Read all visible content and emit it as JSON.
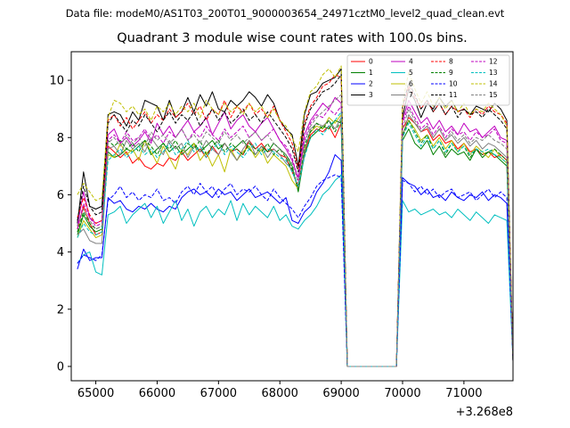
{
  "suptitle": "Data file: modeM0/AS1T03_200T01_9000003654_24971cztM0_level2_quad_clean.evt",
  "chart_data": {
    "type": "line",
    "title": "Quadrant 3 module wise count rates with 100.0s bins.",
    "xlabel": "",
    "ylabel": "",
    "x_offset_label": "+3.268e8",
    "xlim": [
      64600,
      71800
    ],
    "ylim": [
      -0.5,
      11
    ],
    "xticks": [
      65000,
      66000,
      67000,
      68000,
      69000,
      70000,
      71000
    ],
    "yticks": [
      0,
      2,
      4,
      6,
      8,
      10
    ],
    "grid": false,
    "legend": {
      "placement": "top-right",
      "columns": 4
    },
    "x_start": 64700,
    "x_step": 100,
    "series": [
      {
        "name": "0",
        "color": "#ff0000",
        "dash": "solid",
        "values": [
          4.8,
          5.6,
          5.0,
          4.6,
          4.7,
          7.7,
          7.5,
          7.3,
          7.5,
          7.1,
          7.3,
          7.0,
          6.9,
          7.1,
          7.0,
          7.3,
          7.2,
          7.5,
          7.2,
          7.4,
          7.6,
          7.3,
          7.7,
          7.4,
          7.8,
          7.5,
          7.6,
          7.4,
          7.9,
          7.6,
          7.8,
          7.5,
          7.6,
          7.4,
          7.3,
          6.8,
          6.3,
          7.5,
          8.1,
          8.3,
          8.2,
          8.4,
          8.0,
          8.5,
          0.0,
          0.0,
          0.0,
          0.0,
          0.0,
          0.0,
          0.0,
          0.0,
          0.0,
          8.3,
          8.7,
          8.5,
          8.2,
          8.3,
          7.9,
          8.1,
          7.8,
          7.9,
          7.6,
          7.8,
          7.5,
          7.6,
          7.4,
          7.5,
          7.3,
          7.4,
          7.2,
          0.2
        ]
      },
      {
        "name": "1",
        "color": "#008000",
        "dash": "solid",
        "values": [
          4.6,
          5.3,
          4.9,
          4.7,
          4.8,
          7.5,
          7.3,
          7.4,
          7.6,
          7.5,
          7.7,
          7.9,
          7.4,
          7.6,
          7.8,
          7.5,
          7.7,
          7.4,
          7.6,
          7.8,
          7.5,
          7.7,
          7.9,
          7.6,
          7.8,
          7.5,
          7.7,
          7.9,
          7.6,
          7.4,
          7.7,
          7.5,
          7.8,
          7.6,
          7.4,
          7.0,
          6.1,
          7.4,
          8.0,
          8.2,
          8.4,
          8.3,
          8.6,
          8.5,
          0.0,
          0.0,
          0.0,
          0.0,
          0.0,
          0.0,
          0.0,
          0.0,
          0.0,
          7.9,
          8.3,
          7.8,
          7.6,
          7.9,
          7.4,
          7.7,
          7.3,
          7.6,
          7.4,
          7.5,
          7.2,
          7.6,
          7.3,
          7.5,
          7.4,
          7.2,
          7.0,
          0.2
        ]
      },
      {
        "name": "2",
        "color": "#0000ff",
        "dash": "solid",
        "values": [
          3.4,
          4.1,
          3.7,
          3.8,
          3.8,
          5.9,
          5.7,
          5.8,
          5.5,
          5.4,
          5.6,
          5.5,
          5.7,
          5.5,
          5.4,
          5.6,
          5.5,
          5.9,
          6.1,
          6.2,
          6.0,
          6.1,
          5.9,
          6.2,
          6.0,
          6.1,
          5.8,
          6.0,
          6.2,
          5.9,
          6.0,
          6.1,
          5.9,
          5.7,
          5.9,
          5.1,
          5.0,
          5.4,
          5.6,
          6.1,
          6.4,
          6.8,
          7.4,
          7.2,
          0.0,
          0.0,
          0.0,
          0.0,
          0.0,
          0.0,
          0.0,
          0.0,
          0.0,
          6.6,
          6.4,
          6.3,
          6.0,
          6.2,
          5.9,
          6.0,
          5.8,
          6.1,
          5.9,
          5.8,
          6.0,
          5.9,
          6.1,
          5.8,
          6.0,
          5.9,
          5.7,
          0.2
        ]
      },
      {
        "name": "3",
        "color": "#000000",
        "dash": "solid",
        "values": [
          5.0,
          6.8,
          5.6,
          5.5,
          5.6,
          8.8,
          8.9,
          8.8,
          8.4,
          8.9,
          8.6,
          9.3,
          9.2,
          9.1,
          8.6,
          9.3,
          8.7,
          8.9,
          9.4,
          8.9,
          9.5,
          9.1,
          9.6,
          9.0,
          8.9,
          9.3,
          9.1,
          9.3,
          9.6,
          9.4,
          9.1,
          9.5,
          9.2,
          8.6,
          8.3,
          8.1,
          7.0,
          8.8,
          9.5,
          9.6,
          9.9,
          10.0,
          10.1,
          10.4,
          0.0,
          0.0,
          0.0,
          0.0,
          0.0,
          0.0,
          0.0,
          0.0,
          0.0,
          8.7,
          9.7,
          9.3,
          8.7,
          9.2,
          9.0,
          9.4,
          9.1,
          9.3,
          8.9,
          9.0,
          8.8,
          9.1,
          9.0,
          8.9,
          9.2,
          9.0,
          8.6,
          0.2
        ]
      },
      {
        "name": "4",
        "color": "#bf00bf",
        "dash": "solid",
        "values": [
          4.9,
          6.1,
          5.2,
          5.0,
          5.1,
          8.1,
          8.3,
          7.8,
          8.0,
          7.7,
          7.9,
          8.2,
          7.8,
          8.5,
          8.1,
          8.4,
          8.0,
          8.3,
          8.6,
          8.2,
          8.4,
          8.7,
          8.1,
          8.5,
          8.9,
          8.3,
          8.6,
          8.8,
          8.4,
          8.2,
          8.5,
          8.7,
          8.3,
          7.9,
          7.6,
          7.2,
          6.6,
          8.1,
          8.6,
          8.9,
          9.2,
          9.0,
          9.4,
          9.2,
          0.0,
          0.0,
          0.0,
          0.0,
          0.0,
          0.0,
          0.0,
          0.0,
          0.0,
          8.6,
          9.3,
          8.9,
          8.5,
          8.7,
          8.3,
          8.6,
          8.2,
          8.4,
          8.1,
          8.5,
          8.2,
          8.3,
          8.0,
          8.2,
          8.4,
          8.0,
          7.9,
          0.2
        ]
      },
      {
        "name": "5",
        "color": "#00bfbf",
        "dash": "solid",
        "values": [
          3.6,
          3.9,
          4.0,
          3.3,
          3.2,
          5.3,
          5.4,
          5.6,
          5.0,
          5.3,
          5.5,
          5.7,
          5.2,
          5.6,
          5.0,
          5.4,
          5.8,
          5.1,
          5.5,
          4.9,
          5.4,
          5.6,
          5.2,
          5.5,
          5.3,
          5.8,
          5.1,
          5.7,
          5.3,
          5.6,
          5.4,
          5.2,
          5.6,
          5.1,
          5.3,
          4.9,
          4.8,
          5.1,
          5.3,
          5.6,
          6.0,
          6.2,
          6.5,
          6.7,
          0.0,
          0.0,
          0.0,
          0.0,
          0.0,
          0.0,
          0.0,
          0.0,
          0.0,
          5.8,
          5.4,
          5.5,
          5.3,
          5.4,
          5.5,
          5.3,
          5.4,
          5.2,
          5.5,
          5.3,
          5.1,
          5.4,
          5.2,
          5.0,
          5.3,
          5.2,
          5.1,
          0.2
        ]
      },
      {
        "name": "6",
        "color": "#bfbf00",
        "dash": "solid",
        "values": [
          4.5,
          5.1,
          4.8,
          4.5,
          4.6,
          7.4,
          7.3,
          7.8,
          7.4,
          7.6,
          7.2,
          7.9,
          7.5,
          7.1,
          7.7,
          7.3,
          6.9,
          7.6,
          7.4,
          7.8,
          7.2,
          7.5,
          7.0,
          7.4,
          6.8,
          7.6,
          7.2,
          7.5,
          7.7,
          7.3,
          7.6,
          7.1,
          7.4,
          7.2,
          7.0,
          6.5,
          6.2,
          7.6,
          8.2,
          8.4,
          8.3,
          8.7,
          8.5,
          8.8,
          0.0,
          0.0,
          0.0,
          0.0,
          0.0,
          0.0,
          0.0,
          0.0,
          0.0,
          8.1,
          8.6,
          8.3,
          7.9,
          8.1,
          7.7,
          8.0,
          7.6,
          7.9,
          7.5,
          7.8,
          7.4,
          7.7,
          7.5,
          7.3,
          7.6,
          7.3,
          7.1,
          0.2
        ]
      },
      {
        "name": "7",
        "color": "#808080",
        "dash": "solid",
        "values": [
          4.6,
          4.8,
          4.4,
          4.3,
          4.3,
          7.6,
          7.7,
          7.4,
          7.9,
          7.6,
          7.8,
          7.5,
          8.0,
          7.7,
          7.4,
          7.9,
          7.6,
          7.8,
          7.3,
          7.7,
          7.5,
          7.9,
          7.6,
          7.4,
          7.8,
          7.5,
          7.2,
          7.6,
          7.9,
          7.4,
          7.7,
          7.3,
          7.6,
          7.4,
          7.1,
          6.9,
          6.2,
          7.5,
          8.3,
          8.5,
          8.4,
          8.6,
          8.3,
          8.7,
          0.0,
          0.0,
          0.0,
          0.0,
          0.0,
          0.0,
          0.0,
          0.0,
          0.0,
          8.0,
          8.8,
          8.5,
          8.2,
          8.4,
          8.0,
          8.3,
          7.9,
          8.1,
          7.8,
          8.0,
          7.7,
          7.9,
          7.6,
          7.8,
          7.7,
          7.5,
          7.3,
          0.2
        ]
      },
      {
        "name": "8",
        "color": "#ff0000",
        "dash": "dashed",
        "values": [
          5.2,
          5.9,
          5.3,
          5.0,
          5.1,
          8.6,
          8.8,
          8.4,
          8.7,
          8.3,
          8.6,
          8.9,
          8.5,
          8.8,
          8.6,
          9.0,
          8.7,
          8.9,
          9.2,
          8.8,
          9.1,
          8.6,
          9.0,
          8.8,
          9.3,
          8.7,
          9.1,
          8.9,
          9.2,
          8.8,
          9.0,
          8.7,
          9.1,
          8.6,
          8.2,
          7.8,
          6.9,
          8.5,
          9.1,
          9.4,
          9.8,
          9.9,
          10.2,
          10.1,
          0.0,
          0.0,
          0.0,
          0.0,
          0.0,
          0.0,
          0.0,
          0.0,
          0.0,
          9.0,
          9.8,
          9.4,
          9.0,
          9.3,
          8.9,
          9.2,
          8.8,
          9.1,
          8.9,
          9.0,
          8.7,
          9.0,
          8.8,
          9.1,
          8.9,
          8.8,
          8.5,
          0.2
        ]
      },
      {
        "name": "9",
        "color": "#008000",
        "dash": "dashed",
        "values": [
          4.7,
          5.4,
          5.0,
          4.8,
          4.9,
          7.9,
          7.7,
          7.9,
          7.6,
          7.8,
          7.5,
          7.9,
          7.7,
          7.4,
          7.8,
          7.6,
          7.9,
          7.5,
          7.8,
          7.6,
          7.9,
          7.4,
          7.7,
          7.9,
          7.5,
          7.8,
          7.6,
          7.4,
          7.8,
          7.6,
          7.5,
          7.8,
          7.4,
          7.6,
          7.3,
          6.9,
          6.2,
          7.7,
          8.2,
          8.5,
          8.3,
          8.6,
          8.2,
          8.6,
          0.0,
          0.0,
          0.0,
          0.0,
          0.0,
          0.0,
          0.0,
          0.0,
          0.0,
          8.1,
          8.6,
          8.2,
          7.8,
          8.1,
          7.6,
          7.9,
          7.4,
          7.8,
          7.5,
          7.7,
          7.3,
          7.6,
          7.4,
          7.5,
          7.6,
          7.4,
          7.2,
          0.2
        ]
      },
      {
        "name": "10",
        "color": "#0000ff",
        "dash": "dashed",
        "values": [
          3.6,
          3.9,
          3.8,
          3.7,
          3.9,
          5.8,
          6.0,
          6.3,
          5.9,
          6.1,
          5.8,
          6.0,
          5.9,
          6.2,
          5.8,
          5.9,
          5.7,
          6.1,
          6.3,
          6.0,
          6.4,
          6.1,
          6.3,
          5.9,
          6.2,
          6.4,
          6.0,
          6.2,
          6.1,
          6.3,
          6.0,
          5.8,
          6.2,
          5.9,
          5.7,
          5.5,
          5.2,
          5.6,
          5.9,
          6.3,
          6.5,
          6.6,
          6.7,
          6.6,
          0.0,
          0.0,
          0.0,
          0.0,
          0.0,
          0.0,
          0.0,
          0.0,
          0.0,
          6.5,
          6.4,
          6.1,
          6.3,
          6.0,
          6.2,
          5.9,
          6.1,
          6.2,
          5.9,
          6.0,
          6.1,
          5.8,
          6.0,
          6.2,
          5.9,
          6.1,
          5.9,
          0.2
        ]
      },
      {
        "name": "11",
        "color": "#000000",
        "dash": "dashed",
        "values": [
          5.1,
          6.3,
          5.6,
          5.3,
          5.4,
          8.5,
          8.8,
          8.5,
          8.2,
          8.6,
          8.4,
          8.8,
          8.5,
          8.2,
          8.6,
          8.9,
          8.5,
          8.8,
          8.6,
          8.9,
          8.4,
          8.7,
          9.0,
          8.6,
          8.9,
          8.5,
          8.7,
          9.0,
          8.6,
          8.8,
          8.5,
          8.9,
          8.6,
          8.3,
          8.0,
          7.6,
          6.8,
          8.4,
          9.0,
          9.3,
          9.6,
          9.7,
          9.9,
          10.2,
          0.0,
          0.0,
          0.0,
          0.0,
          0.0,
          0.0,
          0.0,
          0.0,
          0.0,
          9.1,
          9.9,
          9.5,
          9.0,
          9.3,
          8.9,
          9.2,
          8.8,
          9.1,
          8.7,
          9.0,
          8.8,
          8.9,
          8.7,
          9.0,
          8.8,
          8.6,
          8.3,
          0.2
        ]
      },
      {
        "name": "12",
        "color": "#bf00bf",
        "dash": "dashed",
        "values": [
          4.8,
          5.7,
          5.2,
          4.9,
          5.0,
          7.9,
          8.1,
          7.8,
          8.2,
          7.9,
          8.0,
          8.3,
          7.9,
          8.1,
          7.8,
          8.2,
          8.0,
          8.3,
          7.9,
          8.2,
          8.0,
          8.4,
          8.1,
          7.9,
          8.3,
          8.0,
          8.2,
          8.4,
          8.0,
          8.2,
          7.9,
          8.1,
          8.3,
          7.9,
          7.7,
          7.3,
          6.5,
          7.9,
          8.5,
          8.8,
          8.7,
          9.0,
          8.8,
          9.1,
          0.0,
          0.0,
          0.0,
          0.0,
          0.0,
          0.0,
          0.0,
          0.0,
          0.0,
          8.5,
          9.1,
          8.7,
          8.3,
          8.5,
          8.1,
          8.4,
          8.0,
          8.3,
          8.1,
          8.2,
          7.9,
          8.2,
          8.0,
          8.1,
          8.3,
          7.9,
          7.8,
          0.2
        ]
      },
      {
        "name": "13",
        "color": "#00bfbf",
        "dash": "dashed",
        "values": [
          4.5,
          5.0,
          4.7,
          4.6,
          4.7,
          7.2,
          7.4,
          7.6,
          7.3,
          7.5,
          7.7,
          7.4,
          7.6,
          7.3,
          7.5,
          7.8,
          7.4,
          7.6,
          7.9,
          7.5,
          7.7,
          7.3,
          7.6,
          7.8,
          7.4,
          7.7,
          7.5,
          7.3,
          7.6,
          7.8,
          7.4,
          7.6,
          7.5,
          7.3,
          7.2,
          6.8,
          6.3,
          7.3,
          8.0,
          8.3,
          8.1,
          8.4,
          8.6,
          8.9,
          0.0,
          0.0,
          0.0,
          0.0,
          0.0,
          0.0,
          0.0,
          0.0,
          0.0,
          8.0,
          8.5,
          8.1,
          7.7,
          8.0,
          7.6,
          7.9,
          7.5,
          7.8,
          7.5,
          7.7,
          7.4,
          7.6,
          7.5,
          7.6,
          7.4,
          7.3,
          7.1,
          0.2
        ]
      },
      {
        "name": "14",
        "color": "#bfbf00",
        "dash": "dashed",
        "values": [
          6.0,
          6.4,
          6.1,
          5.8,
          5.9,
          8.7,
          9.3,
          9.2,
          8.9,
          9.1,
          8.8,
          9.0,
          8.6,
          9.1,
          8.9,
          9.2,
          8.8,
          9.1,
          8.9,
          9.2,
          8.7,
          9.3,
          9.0,
          8.8,
          9.2,
          8.9,
          9.1,
          8.8,
          9.2,
          8.9,
          9.1,
          8.7,
          9.0,
          8.6,
          8.4,
          8.0,
          7.5,
          8.9,
          9.6,
          9.8,
          10.2,
          10.4,
          10.1,
          10.5,
          0.0,
          0.0,
          0.0,
          0.0,
          0.0,
          0.0,
          0.0,
          0.0,
          0.0,
          9.2,
          10.3,
          9.7,
          9.2,
          9.6,
          9.1,
          9.4,
          9.0,
          9.3,
          8.9,
          9.2,
          8.8,
          9.0,
          8.9,
          9.2,
          9.0,
          8.8,
          8.4,
          0.2
        ]
      },
      {
        "name": "15",
        "color": "#808080",
        "dash": "dashed",
        "values": [
          4.9,
          5.5,
          5.1,
          4.8,
          4.9,
          7.8,
          8.0,
          7.7,
          8.1,
          7.8,
          8.0,
          7.7,
          8.2,
          7.9,
          8.1,
          7.8,
          8.0,
          8.3,
          7.9,
          8.1,
          7.8,
          8.2,
          8.0,
          7.8,
          8.2,
          7.9,
          8.1,
          7.8,
          8.0,
          8.2,
          7.9,
          8.1,
          7.8,
          7.6,
          7.4,
          7.1,
          6.4,
          7.8,
          8.4,
          8.7,
          8.9,
          9.1,
          9.3,
          9.5,
          0.0,
          0.0,
          0.0,
          0.0,
          0.0,
          0.0,
          0.0,
          0.0,
          0.0,
          8.3,
          9.0,
          8.6,
          8.2,
          8.4,
          8.0,
          8.3,
          7.9,
          8.2,
          7.9,
          8.1,
          7.8,
          8.0,
          7.9,
          8.1,
          7.9,
          7.8,
          7.6,
          0.2
        ]
      }
    ]
  }
}
